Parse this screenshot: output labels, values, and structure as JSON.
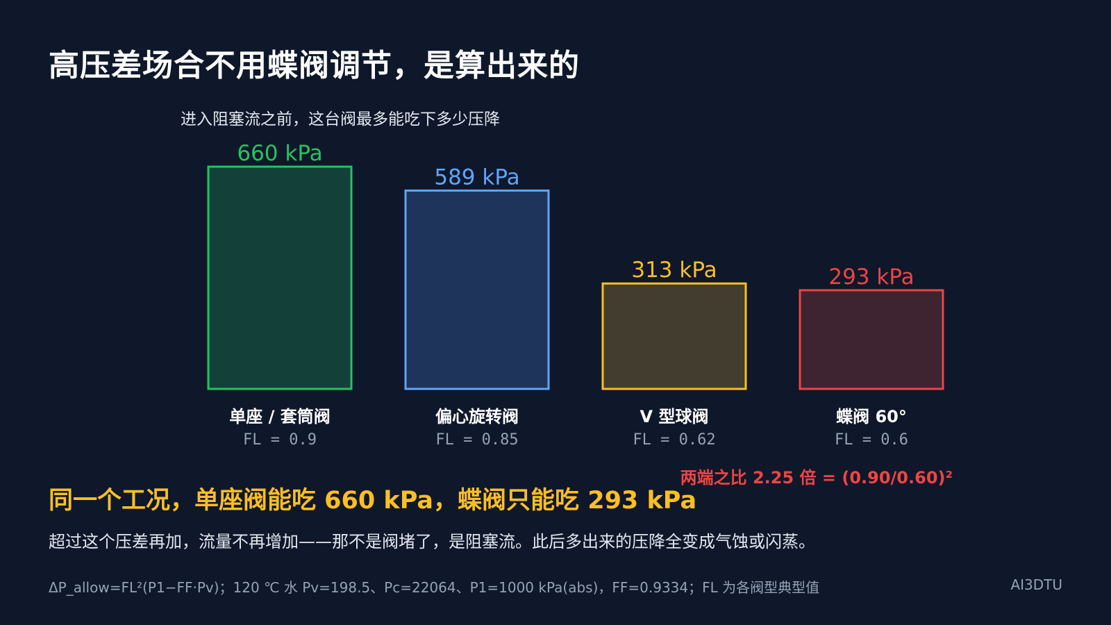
{
  "title": "高压差场合不用蝶阀调节，是算出来的",
  "chart_data": {
    "type": "bar",
    "title": "进入阻塞流之前，这台阀最多能吃下多少压降",
    "unit": "kPa",
    "categories": [
      "单座 / 套筒阀",
      "偏心旋转阀",
      "V 型球阀",
      "蝶阀 60°"
    ],
    "fl_labels": [
      "FL = 0.9",
      "FL = 0.85",
      "FL = 0.62",
      "FL = 0.6"
    ],
    "values": [
      660,
      589,
      313,
      293
    ],
    "value_labels": [
      "660 kPa",
      "589 kPa",
      "313 kPa",
      "293 kPa"
    ],
    "colors": [
      {
        "stroke": "#22c55e",
        "fill": "#14403a",
        "text": "#22c55e"
      },
      {
        "stroke": "#60a5fa",
        "fill": "#1f345a",
        "text": "#60a5fa"
      },
      {
        "stroke": "#fbbf24",
        "fill": "#423d2e",
        "text": "#fbbf24"
      },
      {
        "stroke": "#ef4444",
        "fill": "#3e2430",
        "text": "#ef4444"
      }
    ],
    "ylim": [
      0,
      660
    ],
    "grid": false,
    "annotation": "两端之比 2.25 倍 = (0.90/0.60)²"
  },
  "headline": "同一个工况，单座阀能吃 660 kPa，蝶阀只能吃 293 kPa",
  "explanation": "超过这个压差再加，流量不再增加——那不是阀堵了，是阻塞流。此后多出来的压降全变成气蚀或闪蒸。",
  "footnote": "ΔP_allow=FL²(P1−FF·Pv)；120 ℃ 水 Pv=198.5、Pc=22064、P1=1000 kPa(abs)，FF=0.9334；FL 为各阀型典型值",
  "brand": "AI3DTU"
}
